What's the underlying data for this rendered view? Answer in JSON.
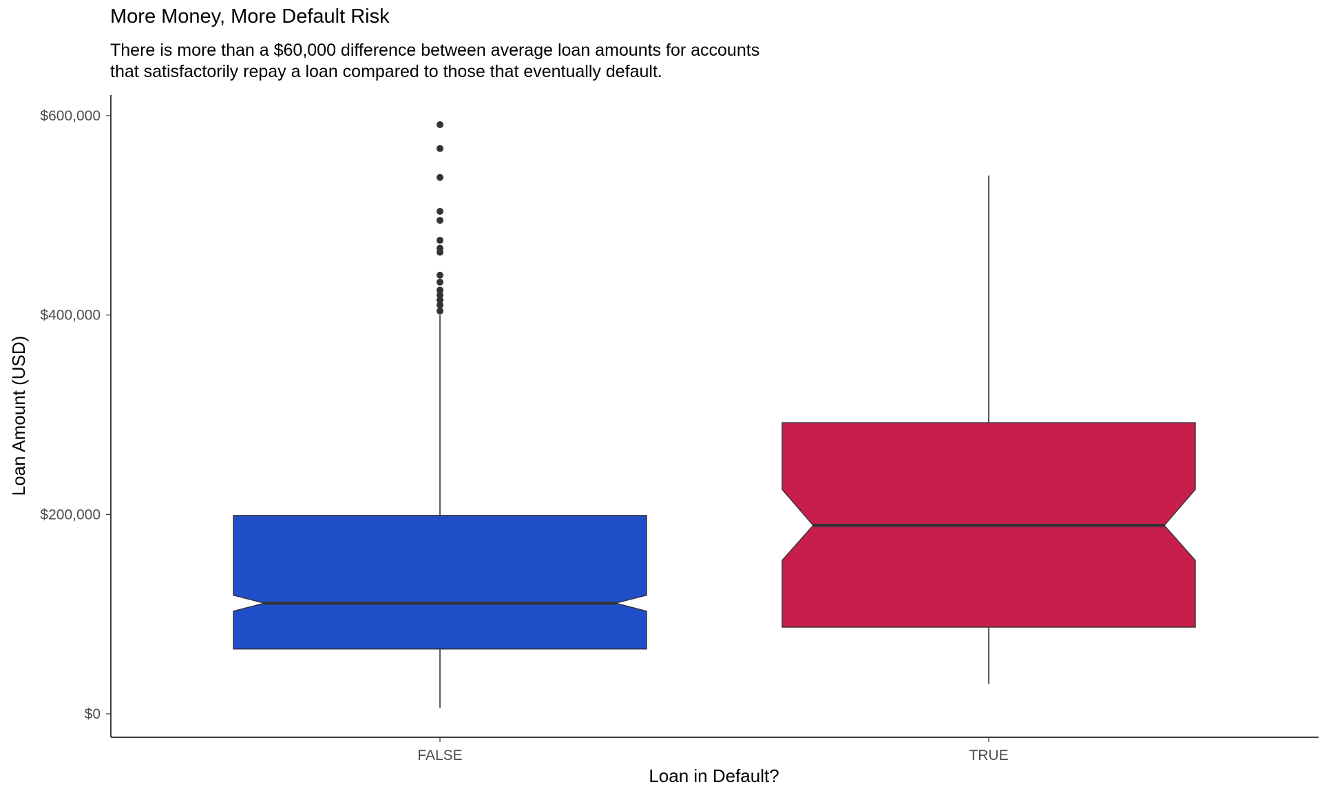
{
  "chart_data": {
    "type": "boxplot",
    "notched": true,
    "title": "More Money, More Default Risk",
    "subtitle_lines": [
      "There is more than a $60,000 difference between average loan amounts for accounts",
      "that satisfactorily repay a loan compared to those that eventually default."
    ],
    "xlabel": "Loan in Default?",
    "ylabel": "Loan Amount (USD)",
    "ylim": [
      0,
      600000
    ],
    "y_ticks": [
      0,
      200000,
      400000,
      600000
    ],
    "y_tick_labels": [
      "$0",
      "$200,000",
      "$400,000",
      "$600,000"
    ],
    "grid": false,
    "categories": [
      "FALSE",
      "TRUE"
    ],
    "colors": {
      "FALSE": "#1f4ec8",
      "TRUE": "#c81e4b"
    },
    "boxes": [
      {
        "category": "FALSE",
        "whisker_low": 6000,
        "q1": 65000,
        "notch_low": 103000,
        "median": 111000,
        "notch_high": 119000,
        "q3": 199000,
        "whisker_high": 400000,
        "outliers": [
          404000,
          410000,
          415000,
          420000,
          425000,
          433000,
          440000,
          463000,
          467000,
          475000,
          495000,
          504000,
          538000,
          567000,
          591000
        ]
      },
      {
        "category": "TRUE",
        "whisker_low": 30000,
        "q1": 87000,
        "notch_low": 154000,
        "median": 189000,
        "notch_high": 225000,
        "q3": 292000,
        "whisker_high": 540000,
        "outliers": []
      }
    ]
  }
}
